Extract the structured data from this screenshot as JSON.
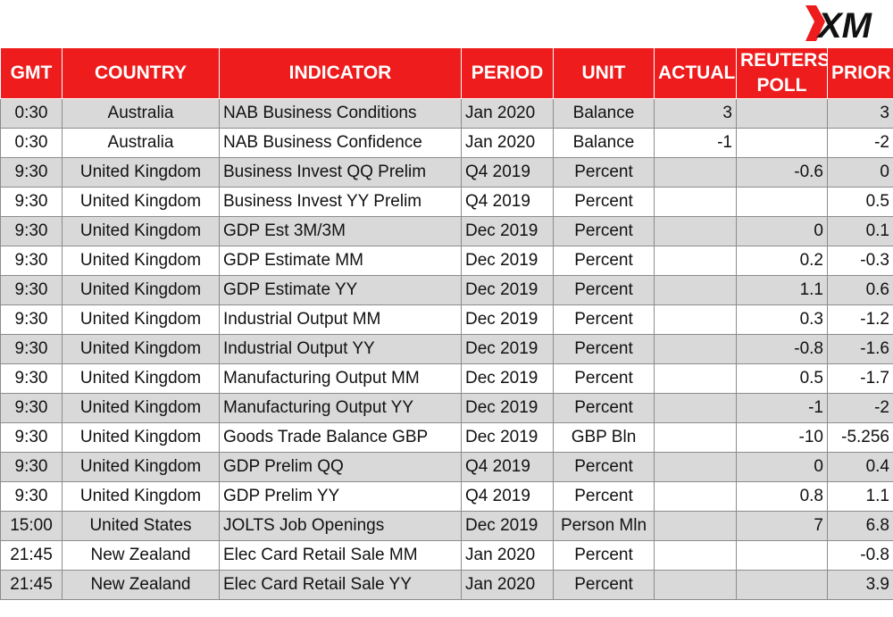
{
  "brand": {
    "logo_text": "XM",
    "accent": "#ee1c1c"
  },
  "columns": [
    "GMT",
    "COUNTRY",
    "INDICATOR",
    "PERIOD",
    "UNIT",
    "ACTUAL",
    "REUTERS POLL",
    "PRIOR"
  ],
  "header": {
    "gmt": "GMT",
    "country": "COUNTRY",
    "indicator": "INDICATOR",
    "period": "PERIOD",
    "unit": "UNIT",
    "actual": "ACTUAL",
    "reuters_poll_line1": "REUTERS",
    "reuters_poll_line2": "POLL",
    "prior": "PRIOR"
  },
  "rows": [
    {
      "gmt": "0:30",
      "country": "Australia",
      "indicator": "NAB Business Conditions",
      "period": "Jan 2020",
      "unit": "Balance",
      "actual": "3",
      "poll": "",
      "prior": "3"
    },
    {
      "gmt": "0:30",
      "country": "Australia",
      "indicator": "NAB Business Confidence",
      "period": "Jan 2020",
      "unit": "Balance",
      "actual": "-1",
      "poll": "",
      "prior": "-2"
    },
    {
      "gmt": "9:30",
      "country": "United Kingdom",
      "indicator": "Business Invest QQ Prelim",
      "period": "Q4 2019",
      "unit": "Percent",
      "actual": "",
      "poll": "-0.6",
      "prior": "0"
    },
    {
      "gmt": "9:30",
      "country": "United Kingdom",
      "indicator": "Business Invest YY Prelim",
      "period": "Q4 2019",
      "unit": "Percent",
      "actual": "",
      "poll": "",
      "prior": "0.5"
    },
    {
      "gmt": "9:30",
      "country": "United Kingdom",
      "indicator": "GDP Est 3M/3M",
      "period": "Dec 2019",
      "unit": "Percent",
      "actual": "",
      "poll": "0",
      "prior": "0.1"
    },
    {
      "gmt": "9:30",
      "country": "United Kingdom",
      "indicator": "GDP Estimate MM",
      "period": "Dec 2019",
      "unit": "Percent",
      "actual": "",
      "poll": "0.2",
      "prior": "-0.3"
    },
    {
      "gmt": "9:30",
      "country": "United Kingdom",
      "indicator": "GDP Estimate YY",
      "period": "Dec 2019",
      "unit": "Percent",
      "actual": "",
      "poll": "1.1",
      "prior": "0.6"
    },
    {
      "gmt": "9:30",
      "country": "United Kingdom",
      "indicator": "Industrial Output MM",
      "period": "Dec 2019",
      "unit": "Percent",
      "actual": "",
      "poll": "0.3",
      "prior": "-1.2"
    },
    {
      "gmt": "9:30",
      "country": "United Kingdom",
      "indicator": "Industrial Output YY",
      "period": "Dec 2019",
      "unit": "Percent",
      "actual": "",
      "poll": "-0.8",
      "prior": "-1.6"
    },
    {
      "gmt": "9:30",
      "country": "United Kingdom",
      "indicator": "Manufacturing Output MM",
      "period": "Dec 2019",
      "unit": "Percent",
      "actual": "",
      "poll": "0.5",
      "prior": "-1.7"
    },
    {
      "gmt": "9:30",
      "country": "United Kingdom",
      "indicator": "Manufacturing Output YY",
      "period": "Dec 2019",
      "unit": "Percent",
      "actual": "",
      "poll": "-1",
      "prior": "-2"
    },
    {
      "gmt": "9:30",
      "country": "United Kingdom",
      "indicator": "Goods Trade Balance GBP",
      "period": "Dec 2019",
      "unit": "GBP Bln",
      "actual": "",
      "poll": "-10",
      "prior": "-5.256"
    },
    {
      "gmt": "9:30",
      "country": "United Kingdom",
      "indicator": "GDP Prelim QQ",
      "period": "Q4 2019",
      "unit": "Percent",
      "actual": "",
      "poll": "0",
      "prior": "0.4"
    },
    {
      "gmt": "9:30",
      "country": "United Kingdom",
      "indicator": "GDP Prelim YY",
      "period": "Q4 2019",
      "unit": "Percent",
      "actual": "",
      "poll": "0.8",
      "prior": "1.1"
    },
    {
      "gmt": "15:00",
      "country": "United States",
      "indicator": "JOLTS Job Openings",
      "period": "Dec 2019",
      "unit": "Person Mln",
      "actual": "",
      "poll": "7",
      "prior": "6.8"
    },
    {
      "gmt": "21:45",
      "country": "New Zealand",
      "indicator": "Elec Card Retail Sale MM",
      "period": "Jan 2020",
      "unit": "Percent",
      "actual": "",
      "poll": "",
      "prior": "-0.8"
    },
    {
      "gmt": "21:45",
      "country": "New Zealand",
      "indicator": "Elec Card Retail Sale YY",
      "period": "Jan 2020",
      "unit": "Percent",
      "actual": "",
      "poll": "",
      "prior": "3.9"
    }
  ]
}
